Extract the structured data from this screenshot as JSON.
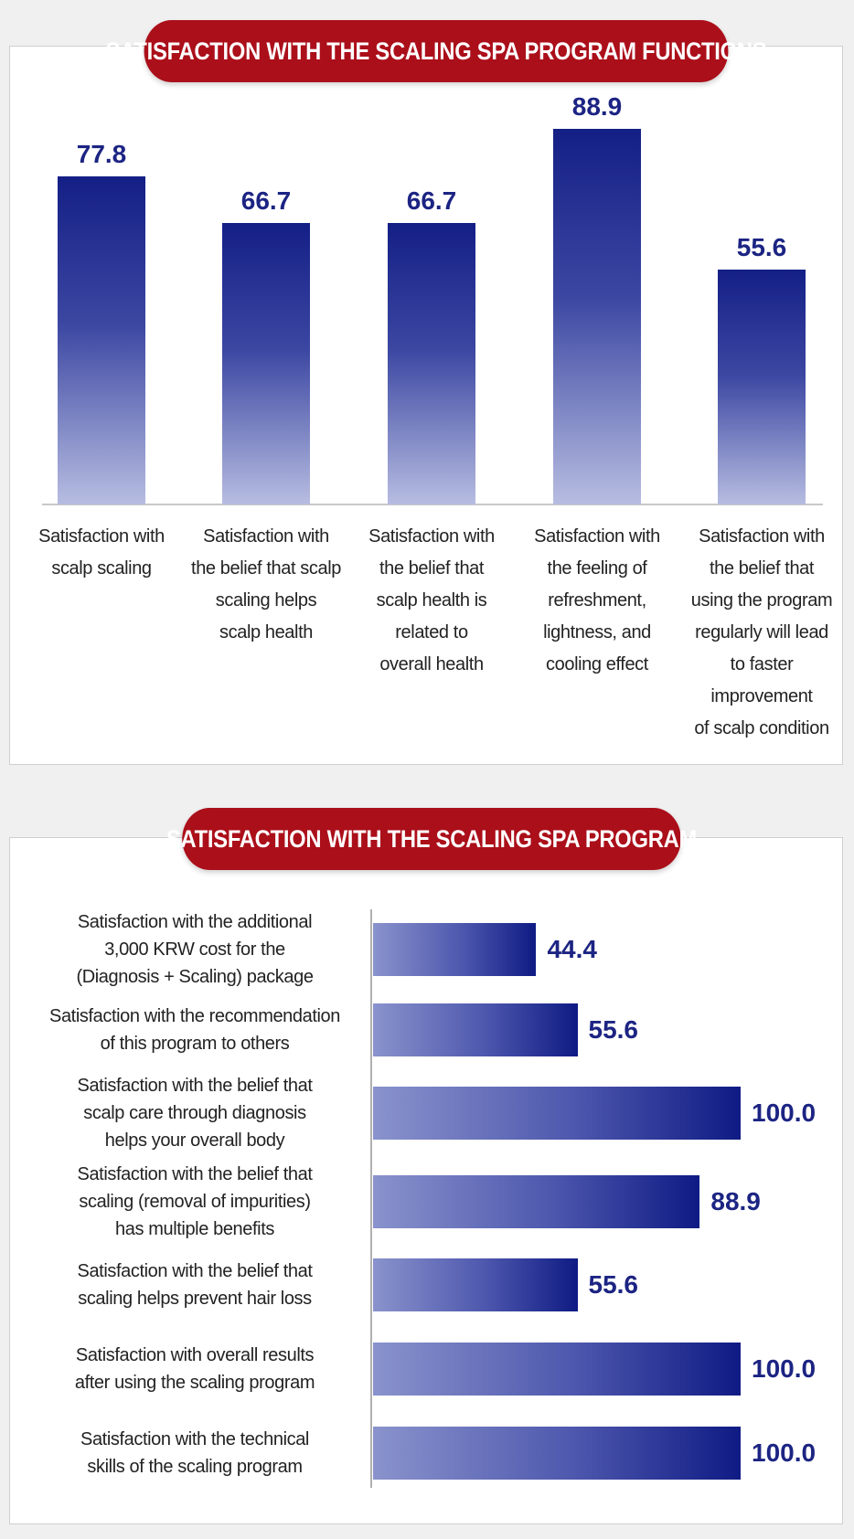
{
  "charts": [
    {
      "title": "SATISFACTION WITH THE SCALING SPA PROGRAM FUNCTIONS",
      "type": "bar",
      "orientation": "vertical",
      "colors": {
        "bar_top": "#141f86",
        "bar_bottom": "#b7bde1",
        "label": "#1c2483",
        "pill": "#ab0f1a"
      },
      "categories": [
        [
          "Satisfaction with",
          "scalp scaling"
        ],
        [
          "Satisfaction with",
          "the belief that scalp",
          "scaling helps",
          "scalp health"
        ],
        [
          "Satisfaction with",
          "the belief that",
          "scalp health is",
          "related to",
          "overall health"
        ],
        [
          "Satisfaction with",
          "the feeling of",
          "refreshment,",
          "lightness, and",
          "cooling effect"
        ],
        [
          "Satisfaction with",
          "the belief that",
          "using the program",
          "regularly will lead",
          "to faster",
          "improvement",
          "of scalp condition"
        ]
      ],
      "values": [
        77.8,
        66.7,
        66.7,
        88.9,
        55.6
      ],
      "value_labels": [
        "77.8",
        "66.7",
        "66.7",
        "88.9",
        "55.6"
      ],
      "ylim": [
        0,
        100
      ]
    },
    {
      "title": "SATISFACTION WITH THE SCALING SPA PROGRAM",
      "type": "bar",
      "orientation": "horizontal",
      "colors": {
        "bar_left": "#8a93cc",
        "bar_right": "#0f1b84",
        "label": "#1c2483",
        "pill": "#ab0f1a"
      },
      "categories": [
        [
          "Satisfaction with the additional",
          "3,000 KRW cost for the",
          "(Diagnosis + Scaling) package"
        ],
        [
          "Satisfaction with the recommendation",
          "of this program to others"
        ],
        [
          "Satisfaction with the belief that",
          "scalp care through diagnosis",
          "helps your overall body"
        ],
        [
          "Satisfaction with the belief that",
          "scaling (removal of impurities)",
          "has multiple benefits"
        ],
        [
          "Satisfaction with the belief that",
          "scaling helps prevent hair loss"
        ],
        [
          "Satisfaction with overall results",
          "after using the scaling program"
        ],
        [
          "Satisfaction with the technical",
          "skills of the scaling program"
        ]
      ],
      "values": [
        44.4,
        55.6,
        100.0,
        88.9,
        55.6,
        100.0,
        100.0
      ],
      "value_labels": [
        "44.4",
        "55.6",
        "100.0",
        "88.9",
        "55.6",
        "100.0",
        "100.0"
      ],
      "xlim": [
        0,
        100
      ]
    }
  ]
}
